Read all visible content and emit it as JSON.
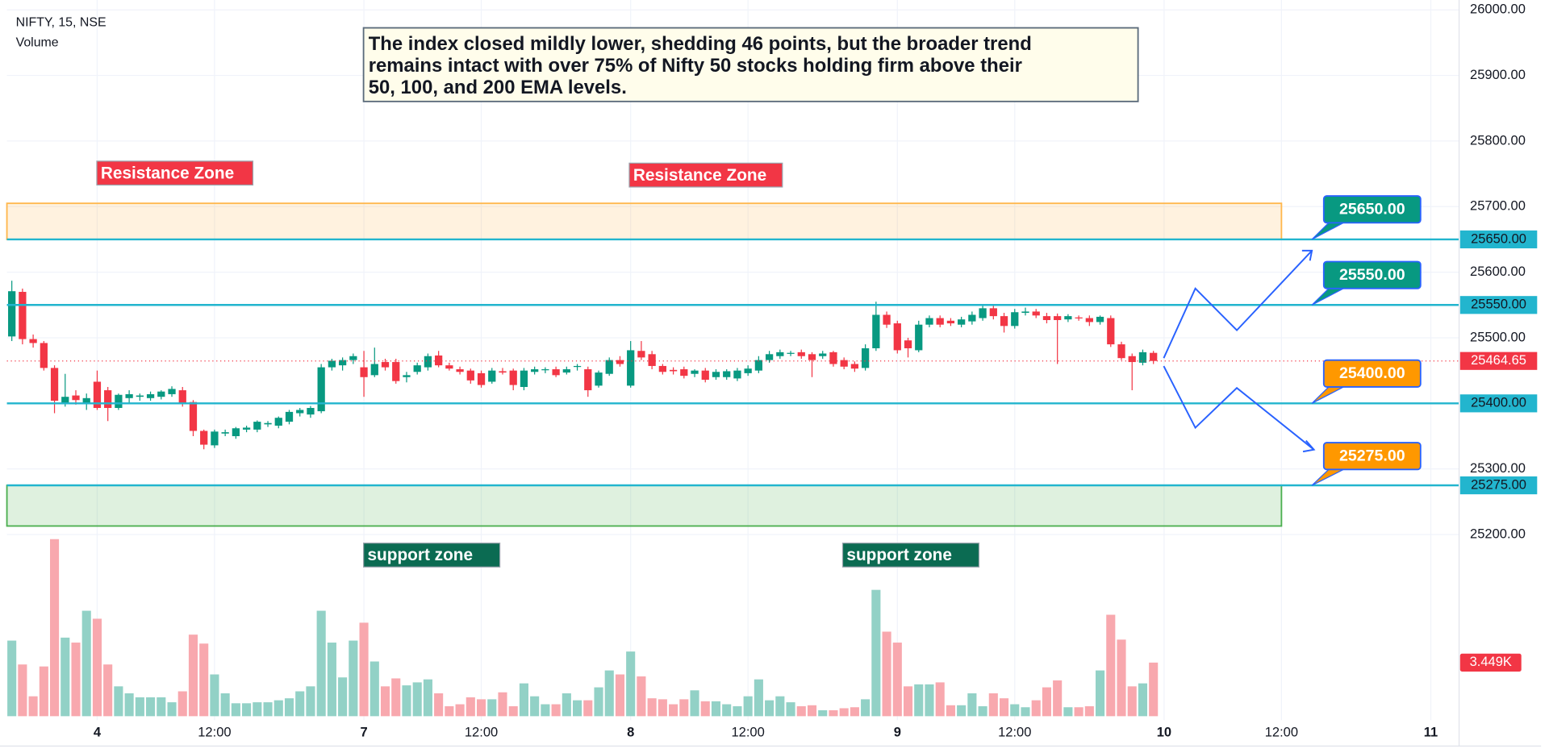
{
  "chart_data": {
    "type": "candlestick",
    "title": "NIFTY, 15, NSE",
    "subtitle": "Volume",
    "annotation": [
      "The index closed mildly lower, shedding 46 points, but the broader trend",
      "remains intact with over 75% of Nifty 50 stocks holding firm above their",
      "50, 100, and 200 EMA levels."
    ],
    "open": [
      25502,
      25570,
      25498,
      25492,
      25454,
      25400,
      25412,
      25400,
      25433,
      25420,
      25393,
      25408,
      25410,
      25408,
      25410,
      25414,
      25420,
      25402,
      25358,
      25336,
      25354,
      25350,
      25360,
      25360,
      25368,
      25366,
      25372,
      25385,
      25383,
      25388,
      25455,
      25458,
      25466,
      25455,
      25443,
      25463,
      25463,
      25440,
      25448,
      25455,
      25473,
      25458,
      25452,
      25450,
      25446,
      25433,
      25449,
      25450,
      25425,
      25448,
      25451,
      25452,
      25447,
      25456,
      25452,
      25427,
      25445,
      25466,
      25427,
      25480,
      25475,
      25457,
      25451,
      25452,
      25445,
      25450,
      25440,
      25440,
      25438,
      25446,
      25450,
      25466,
      25472,
      25476,
      25478,
      25475,
      25472,
      25478,
      25466,
      25460,
      25454,
      25484,
      25535,
      25522,
      25496,
      25481,
      25520,
      25530,
      25526,
      25520,
      25525,
      25530,
      25545,
      25533,
      25518,
      25538,
      25540,
      25533,
      25533,
      25528,
      25531,
      25530,
      25524,
      25530,
      25490,
      25472,
      25462,
      25477
    ],
    "high": [
      25587,
      25575,
      25505,
      25495,
      25458,
      25445,
      25420,
      25415,
      25450,
      25425,
      25415,
      25420,
      25415,
      25418,
      25420,
      25426,
      25425,
      25405,
      25360,
      25360,
      25360,
      25364,
      25366,
      25374,
      25373,
      25380,
      25390,
      25393,
      25396,
      25460,
      25468,
      25470,
      25476,
      25480,
      25485,
      25468,
      25468,
      25448,
      25462,
      25476,
      25480,
      25462,
      25456,
      25453,
      25450,
      25454,
      25454,
      25453,
      25454,
      25456,
      25455,
      25456,
      25456,
      25460,
      25456,
      25450,
      25470,
      25472,
      25495,
      25495,
      25480,
      25460,
      25455,
      25456,
      25452,
      25454,
      25452,
      25452,
      25454,
      25458,
      25472,
      25480,
      25482,
      25480,
      25482,
      25478,
      25480,
      25480,
      25470,
      25464,
      25490,
      25555,
      25540,
      25526,
      25500,
      25526,
      25534,
      25534,
      25530,
      25532,
      25540,
      25550,
      25550,
      25538,
      25544,
      25546,
      25544,
      25538,
      25537,
      25536,
      25534,
      25534,
      25534,
      25534,
      25494,
      25476,
      25482,
      25480
    ],
    "low": [
      25495,
      25490,
      25485,
      25450,
      25385,
      25395,
      25398,
      25390,
      25390,
      25373,
      25390,
      25400,
      25404,
      25404,
      25406,
      25410,
      25395,
      25350,
      25330,
      25332,
      25350,
      25346,
      25356,
      25356,
      25364,
      25362,
      25368,
      25380,
      25378,
      25385,
      25450,
      25450,
      25460,
      25410,
      25440,
      25450,
      25430,
      25432,
      25444,
      25450,
      25455,
      25450,
      25444,
      25430,
      25424,
      25430,
      25444,
      25420,
      25420,
      25444,
      25446,
      25440,
      25444,
      25450,
      25410,
      25424,
      25442,
      25456,
      25424,
      25466,
      25452,
      25444,
      25444,
      25438,
      25440,
      25432,
      25436,
      25436,
      25434,
      25442,
      25446,
      25462,
      25468,
      25472,
      25468,
      25440,
      25468,
      25456,
      25452,
      25448,
      25450,
      25480,
      25515,
      25476,
      25470,
      25478,
      25516,
      25516,
      25518,
      25516,
      25520,
      25526,
      25528,
      25508,
      25514,
      25534,
      25530,
      25522,
      25460,
      25524,
      25526,
      25518,
      25520,
      25486,
      25466,
      25420,
      25458,
      25460
    ],
    "close": [
      25571,
      25498,
      25492,
      25454,
      25404,
      25410,
      25405,
      25408,
      25393,
      25393,
      25413,
      25414,
      25412,
      25414,
      25418,
      25422,
      25400,
      25358,
      25337,
      25357,
      25356,
      25362,
      25363,
      25372,
      25370,
      25378,
      25387,
      25390,
      25393,
      25455,
      25465,
      25466,
      25472,
      25440,
      25460,
      25455,
      25434,
      25443,
      25458,
      25472,
      25458,
      25453,
      25448,
      25435,
      25428,
      25450,
      25447,
      25428,
      25450,
      25452,
      25452,
      25443,
      25452,
      25457,
      25420,
      25447,
      25466,
      25460,
      25481,
      25470,
      25457,
      25448,
      25449,
      25442,
      25450,
      25436,
      25448,
      25449,
      25450,
      25453,
      25466,
      25475,
      25478,
      25477,
      25472,
      25466,
      25476,
      25460,
      25456,
      25453,
      25484,
      25535,
      25520,
      25481,
      25484,
      25520,
      25530,
      25520,
      25522,
      25528,
      25535,
      25545,
      25533,
      25518,
      25539,
      25540,
      25534,
      25527,
      25527,
      25533,
      25530,
      25524,
      25532,
      25490,
      25469,
      25463,
      25478,
      25464.65
    ],
    "volume": [
      4864,
      3328,
      1280,
      3200,
      11392,
      5056,
      4736,
      6784,
      6272,
      3328,
      1920,
      1472,
      1216,
      1216,
      1216,
      896,
      1600,
      5248,
      4672,
      2688,
      1472,
      832,
      832,
      896,
      896,
      1024,
      1152,
      1600,
      1920,
      6784,
      4736,
      2496,
      4864,
      6016,
      3520,
      1920,
      2432,
      1984,
      2176,
      2368,
      1472,
      640,
      768,
      1216,
      1088,
      1088,
      1536,
      640,
      2112,
      1280,
      768,
      768,
      1472,
      1024,
      1024,
      1856,
      2944,
      2688,
      4160,
      2560,
      1152,
      1088,
      768,
      1088,
      1664,
      960,
      960,
      768,
      640,
      1280,
      2368,
      1024,
      1280,
      896,
      640,
      704,
      384,
      384,
      512,
      576,
      1088,
      8128,
      5440,
      4736,
      1920,
      2048,
      2048,
      2176,
      704,
      704,
      1472,
      640,
      1472,
      1152,
      768,
      576,
      1024,
      1856,
      2304,
      576,
      576,
      640,
      2944,
      6528,
      4928,
      1920,
      2112,
      3449
    ],
    "volume_last_label": "3.449K",
    "up_color": "#089981",
    "down_color": "#f23645",
    "volume_up_color": "#92d1c6",
    "volume_down_color": "#f8a8ae",
    "ylim": [
      24920,
      26015
    ],
    "volume_ylim": [
      0,
      46080
    ],
    "xlim": [
      -0.46,
      135.65
    ],
    "yticks": [
      {
        "value": 25200,
        "label": "25200.00"
      },
      {
        "value": 25300,
        "label": "25300.00"
      },
      {
        "value": 25400,
        "label": "25400.00"
      },
      {
        "value": 25500,
        "label": "25500.00"
      },
      {
        "value": 25600,
        "label": "25600.00"
      },
      {
        "value": 25700,
        "label": "25700.00"
      },
      {
        "value": 25800,
        "label": "25800.00"
      },
      {
        "value": 25900,
        "label": "25900.00"
      },
      {
        "value": 26000,
        "label": "26000.00"
      }
    ],
    "xticks": [
      {
        "value": 8,
        "label": "4"
      },
      {
        "value": 19,
        "label": "12:00"
      },
      {
        "value": 33,
        "label": "7"
      },
      {
        "value": 44,
        "label": "12:00"
      },
      {
        "value": 58,
        "label": "8"
      },
      {
        "value": 69,
        "label": "12:00"
      },
      {
        "value": 83,
        "label": "9"
      },
      {
        "value": 94,
        "label": "12:00"
      },
      {
        "value": 108,
        "label": "10"
      },
      {
        "value": 119,
        "label": "12:00"
      },
      {
        "value": 133,
        "label": "11"
      }
    ],
    "grid": true,
    "levels": [
      {
        "value": 25650,
        "label": "25650.00",
        "callout_color": "#089981"
      },
      {
        "value": 25550,
        "label": "25550.00",
        "callout_color": "#089981"
      },
      {
        "value": 25400,
        "label": "25400.00",
        "callout_color": "#ff9800"
      },
      {
        "value": 25275,
        "label": "25275.00",
        "callout_color": "#ff9800"
      }
    ],
    "level_color": "#22b5ce",
    "zones": [
      {
        "low": 25650,
        "high": 25705,
        "color": "#ffb74d"
      },
      {
        "low": 25213,
        "high": 25275,
        "color": "#4caf50"
      }
    ],
    "zone_labels": [
      {
        "text": "Resistance Zone",
        "color": "#f23645"
      },
      {
        "text": "Resistance Zone",
        "color": "#f23645"
      },
      {
        "text": "support zone",
        "color": "#0b6b52"
      },
      {
        "text": "support zone",
        "color": "#0b6b52"
      }
    ]
  }
}
